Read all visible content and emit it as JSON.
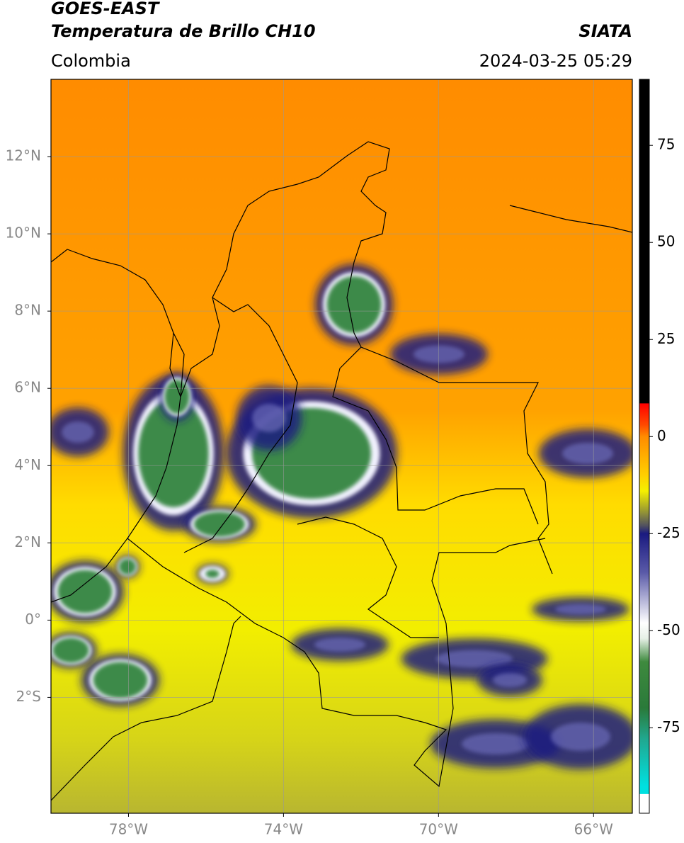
{
  "header": {
    "title": "GOES-EAST",
    "subtitle": "Temperatura de Brillo CH10",
    "source": "SIATA",
    "region": "Colombia",
    "timestamp": "2024-03-25 05:29"
  },
  "chart_data": {
    "type": "map",
    "xlim": [
      -80,
      -65
    ],
    "ylim": [
      -5,
      14
    ],
    "xticks": [
      {
        "value": -78,
        "label": "78°W"
      },
      {
        "value": -74,
        "label": "74°W"
      },
      {
        "value": -70,
        "label": "70°W"
      },
      {
        "value": -66,
        "label": "66°W"
      }
    ],
    "yticks": [
      {
        "value": 12,
        "label": "12°N"
      },
      {
        "value": 10,
        "label": "10°N"
      },
      {
        "value": 8,
        "label": "8°N"
      },
      {
        "value": 6,
        "label": "6°N"
      },
      {
        "value": 4,
        "label": "4°N"
      },
      {
        "value": 2,
        "label": "2°N"
      },
      {
        "value": 0,
        "label": "0°"
      },
      {
        "value": -2,
        "label": "2°S"
      }
    ],
    "grid": true,
    "colorbar": {
      "lim": [
        -97,
        92
      ],
      "ticks": [
        75,
        50,
        25,
        0,
        -25,
        -50,
        -75
      ],
      "colormap": [
        {
          "value": 92,
          "color": "#000000"
        },
        {
          "value": 8.6,
          "color": "#000000"
        },
        {
          "value": 8.5,
          "color": "#ff0000"
        },
        {
          "value": 3,
          "color": "#ff4a00"
        },
        {
          "value": 0,
          "color": "#ff8c00"
        },
        {
          "value": -10,
          "color": "#ffd000"
        },
        {
          "value": -14,
          "color": "#f5f000"
        },
        {
          "value": -19,
          "color": "#9c9c30"
        },
        {
          "value": -23,
          "color": "#505060"
        },
        {
          "value": -25,
          "color": "#1a1a80"
        },
        {
          "value": -35,
          "color": "#5a5aa8"
        },
        {
          "value": -48,
          "color": "#ffffff"
        },
        {
          "value": -52,
          "color": "#e6f0e6"
        },
        {
          "value": -58,
          "color": "#3e8a3e"
        },
        {
          "value": -70,
          "color": "#2a7a3a"
        },
        {
          "value": -78,
          "color": "#20a890"
        },
        {
          "value": -90,
          "color": "#00e0e0"
        },
        {
          "value": -92,
          "color": "#00e0e0"
        },
        {
          "value": -92.1,
          "color": "#ffffff"
        },
        {
          "value": -97,
          "color": "#ffffff"
        }
      ]
    }
  }
}
